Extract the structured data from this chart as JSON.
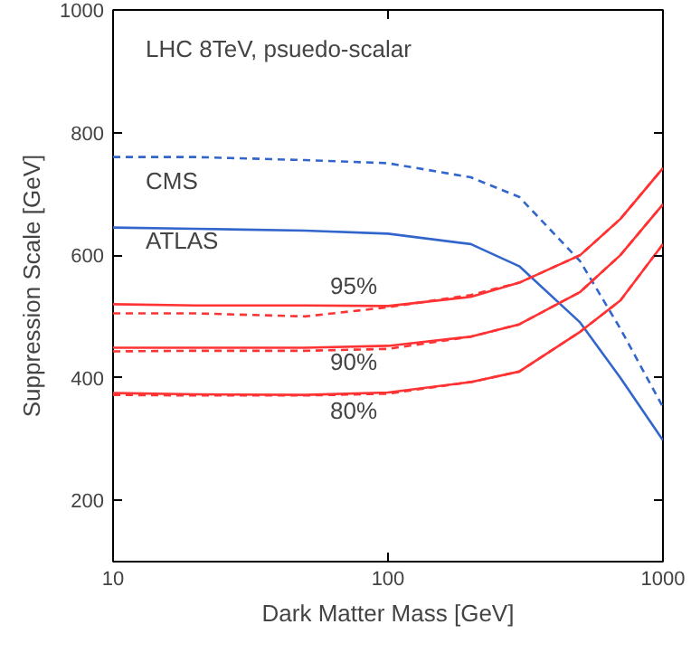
{
  "chart_data": {
    "type": "line",
    "title": "LHC 8TeV, psuedo-scalar",
    "xlabel": "Dark Matter Mass [GeV]",
    "ylabel": "Suppression Scale [GeV]",
    "log": "x",
    "xlim": [
      10,
      1000
    ],
    "ylim": [
      100,
      1000
    ],
    "xticks": [
      10,
      100,
      1000
    ],
    "yticks": [
      200,
      400,
      600,
      800,
      1000
    ],
    "grid": false,
    "marker": "none",
    "x": [
      10,
      20,
      50,
      100,
      200,
      300,
      500,
      700,
      1000
    ],
    "series": [
      {
        "color": "#3366cc",
        "line_style": "dashed",
        "values": [
          760,
          760,
          755,
          750,
          727,
          695,
          590,
          480,
          352
        ]
      },
      {
        "color": "#3366cc",
        "line_style": "solid",
        "values": [
          645,
          643,
          640,
          635,
          618,
          582,
          490,
          400,
          298
        ]
      },
      {
        "color": "#ff3333",
        "line_style": "solid",
        "values": [
          520,
          518,
          518,
          517,
          532,
          555,
          600,
          659,
          742
        ]
      },
      {
        "color": "#ff3333",
        "line_style": "dashed",
        "values": [
          505,
          505,
          500,
          515,
          535,
          555,
          600,
          659,
          742
        ]
      },
      {
        "color": "#ff3333",
        "line_style": "solid",
        "values": [
          449,
          449,
          449,
          452,
          467,
          487,
          540,
          600,
          683
        ]
      },
      {
        "color": "#ff3333",
        "line_style": "dashed",
        "values": [
          443,
          444,
          444,
          447,
          467,
          487,
          540,
          600,
          683
        ]
      },
      {
        "color": "#ff3333",
        "line_style": "solid",
        "values": [
          375,
          373,
          372,
          376,
          393,
          410,
          475,
          526,
          618
        ]
      },
      {
        "color": "#ff3333",
        "line_style": "dashed",
        "values": [
          372,
          371,
          371,
          374,
          393,
          410,
          475,
          526,
          618
        ]
      }
    ],
    "annotations": [
      "CMS",
      "ATLAS",
      "95%",
      "90%",
      "80%"
    ]
  }
}
